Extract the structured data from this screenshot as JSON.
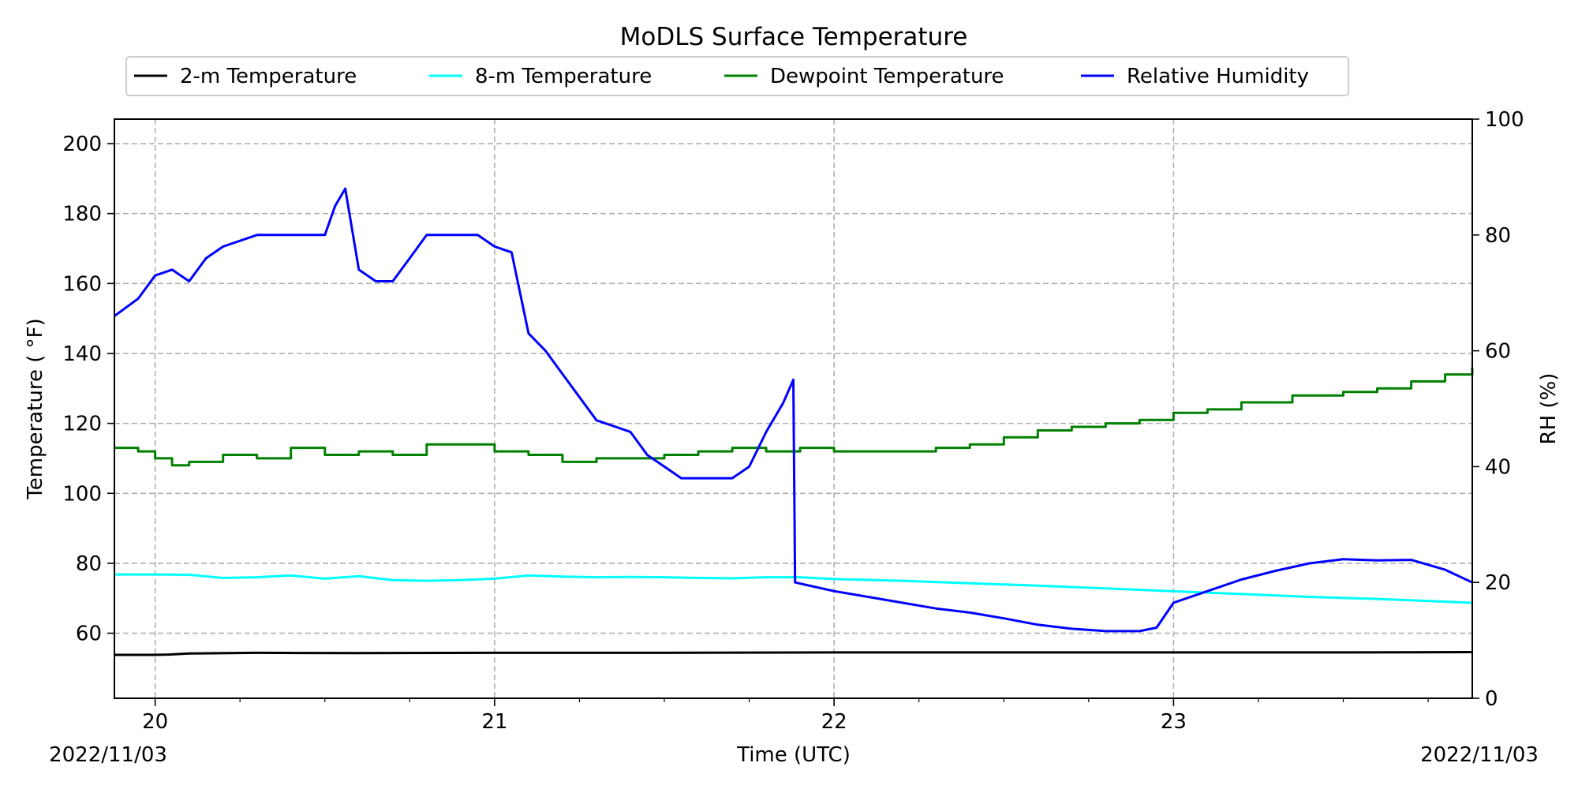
{
  "chart_data": {
    "type": "line",
    "title": "MoDLS Surface Temperature",
    "xlabel": "Time (UTC)",
    "ylabel": "Temperature ($^\\circ$F)",
    "ylabel_display": "Temperature ( °F)",
    "y2label": "RH (%)",
    "date_left": "2022/11/03",
    "date_right": "2022/11/03",
    "xlim": [
      19.88,
      23.88
    ],
    "ylim": [
      41.4,
      207
    ],
    "y2lim": [
      0,
      100
    ],
    "x_ticks": [
      20,
      21,
      22,
      23
    ],
    "x_tick_labels": [
      "20",
      "21",
      "22",
      "23"
    ],
    "y_ticks": [
      60,
      80,
      100,
      120,
      140,
      160,
      180,
      200
    ],
    "y2_ticks": [
      0,
      20,
      40,
      60,
      80,
      100
    ],
    "grid": true,
    "legend_position": "top",
    "series": [
      {
        "name": "2-m Temperature",
        "axis": "left",
        "color": "#000000",
        "x": [
          19.88,
          20.0,
          20.04,
          20.1,
          20.3,
          20.6,
          21.0,
          21.5,
          22.0,
          22.5,
          23.0,
          23.5,
          23.88
        ],
        "y": [
          53.8,
          53.8,
          53.9,
          54.2,
          54.4,
          54.3,
          54.4,
          54.4,
          54.5,
          54.5,
          54.5,
          54.5,
          54.6
        ]
      },
      {
        "name": "8-m Temperature",
        "axis": "left",
        "color": "#00ffff",
        "x": [
          19.88,
          20.0,
          20.1,
          20.2,
          20.3,
          20.4,
          20.5,
          20.6,
          20.7,
          20.8,
          20.9,
          21.0,
          21.1,
          21.2,
          21.3,
          21.4,
          21.5,
          21.6,
          21.7,
          21.8,
          21.9,
          22.0,
          22.2,
          22.4,
          22.6,
          22.8,
          23.0,
          23.2,
          23.4,
          23.6,
          23.88
        ],
        "y": [
          76.8,
          76.8,
          76.7,
          75.8,
          76.0,
          76.5,
          75.6,
          76.3,
          75.2,
          75.0,
          75.2,
          75.6,
          76.5,
          76.2,
          76.0,
          76.1,
          76.0,
          75.8,
          75.7,
          76.0,
          76.0,
          75.5,
          75.0,
          74.3,
          73.6,
          72.8,
          72.0,
          71.2,
          70.4,
          69.8,
          68.7
        ]
      },
      {
        "name": "Dewpoint Temperature",
        "axis": "left",
        "color": "#008000",
        "x": [
          19.88,
          19.95,
          20.0,
          20.05,
          20.1,
          20.2,
          20.3,
          20.4,
          20.5,
          20.6,
          20.7,
          20.8,
          20.9,
          21.0,
          21.1,
          21.2,
          21.3,
          21.4,
          21.5,
          21.6,
          21.7,
          21.8,
          21.9,
          22.0,
          22.1,
          22.2,
          22.3,
          22.4,
          22.5,
          22.6,
          22.7,
          22.8,
          22.9,
          23.0,
          23.1,
          23.2,
          23.35,
          23.5,
          23.6,
          23.7,
          23.8,
          23.88
        ],
        "y": [
          113,
          112,
          110,
          108,
          109,
          111,
          110,
          113,
          111,
          112,
          111,
          114,
          114,
          112,
          111,
          109,
          110,
          110,
          111,
          112,
          113,
          112,
          113,
          112,
          112,
          112,
          113,
          114,
          116,
          118,
          119,
          120,
          121,
          123,
          124,
          126,
          128,
          129,
          130,
          132,
          134,
          136
        ]
      },
      {
        "name": "Relative Humidity",
        "axis": "right",
        "color": "#0000ff",
        "x": [
          19.88,
          19.95,
          20.0,
          20.05,
          20.1,
          20.15,
          20.2,
          20.3,
          20.4,
          20.5,
          20.53,
          20.56,
          20.6,
          20.65,
          20.7,
          20.75,
          20.8,
          20.9,
          20.95,
          21.0,
          21.05,
          21.1,
          21.15,
          21.2,
          21.3,
          21.35,
          21.4,
          21.45,
          21.5,
          21.55,
          21.6,
          21.65,
          21.7,
          21.75,
          21.8,
          21.85,
          21.88,
          21.885,
          22.0,
          22.1,
          22.2,
          22.3,
          22.4,
          22.5,
          22.6,
          22.7,
          22.8,
          22.9,
          22.95,
          23.0,
          23.1,
          23.2,
          23.3,
          23.4,
          23.5,
          23.6,
          23.7,
          23.8,
          23.88
        ],
        "y": [
          66,
          69,
          73,
          74,
          72,
          76,
          78,
          80,
          80,
          80,
          85,
          88,
          74,
          72,
          72,
          76,
          80,
          80,
          80,
          78,
          77,
          63,
          60,
          56,
          48,
          47,
          46,
          42,
          40,
          38,
          38,
          38,
          38,
          40,
          46,
          51,
          55,
          20,
          18.5,
          17.5,
          16.5,
          15.5,
          14.8,
          13.8,
          12.7,
          12.0,
          11.6,
          11.6,
          12.2,
          16.5,
          18.5,
          20.5,
          22.0,
          23.3,
          24.0,
          23.8,
          23.9,
          22.2,
          20.0
        ]
      }
    ]
  }
}
